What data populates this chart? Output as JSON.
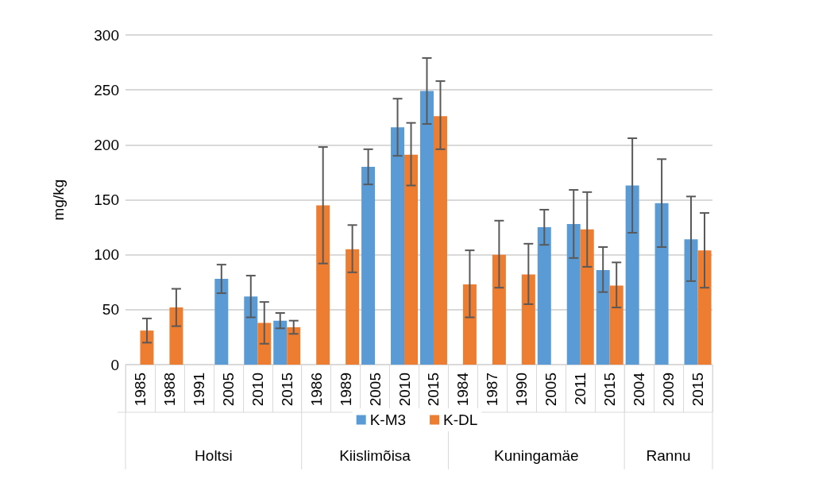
{
  "chart_data": {
    "type": "bar",
    "ylabel": "mg/kg",
    "categories": [
      "1985",
      "1988",
      "1991",
      "2005",
      "2010",
      "2015",
      "1986",
      "1989",
      "2005",
      "2010",
      "2015",
      "1984",
      "1987",
      "1990",
      "2005",
      "2011",
      "2015",
      "2004",
      "2009",
      "2015"
    ],
    "series": [
      {
        "name": "K-M3",
        "color": "#5b9bd5",
        "values": [
          null,
          null,
          null,
          78,
          62,
          40,
          null,
          null,
          180,
          216,
          249,
          null,
          null,
          null,
          125,
          128,
          86,
          163,
          147,
          114
        ],
        "errors": [
          null,
          null,
          null,
          [
            65,
            91
          ],
          [
            43,
            81
          ],
          [
            33,
            47
          ],
          null,
          null,
          [
            164,
            196
          ],
          [
            190,
            242
          ],
          [
            219,
            279
          ],
          null,
          null,
          null,
          [
            109,
            141
          ],
          [
            97,
            159
          ],
          [
            66,
            107
          ],
          [
            120,
            206
          ],
          [
            107,
            187
          ],
          [
            76,
            153
          ]
        ]
      },
      {
        "name": "K-DL",
        "color": "#ed7d31",
        "values": [
          31,
          52,
          null,
          null,
          38,
          34,
          145,
          105,
          null,
          191,
          226,
          73,
          100,
          82,
          null,
          123,
          72,
          null,
          null,
          104
        ],
        "errors": [
          [
            20,
            42
          ],
          [
            35,
            69
          ],
          null,
          null,
          [
            19,
            57
          ],
          [
            28,
            40
          ],
          [
            92,
            198
          ],
          [
            84,
            127
          ],
          null,
          [
            163,
            220
          ],
          [
            196,
            258
          ],
          [
            43,
            104
          ],
          [
            70,
            131
          ],
          [
            55,
            110
          ],
          null,
          [
            89,
            157
          ],
          [
            52,
            93
          ],
          null,
          null,
          [
            70,
            138
          ]
        ]
      }
    ],
    "annotations": [
      "Holtsi",
      "Kiislimõisa",
      "Kuningamäe",
      "Rannu"
    ],
    "ylim": [
      0,
      300
    ],
    "yticks": [
      0,
      50,
      100,
      150,
      200,
      250,
      300
    ],
    "grid": "y",
    "legend": "bottom"
  }
}
